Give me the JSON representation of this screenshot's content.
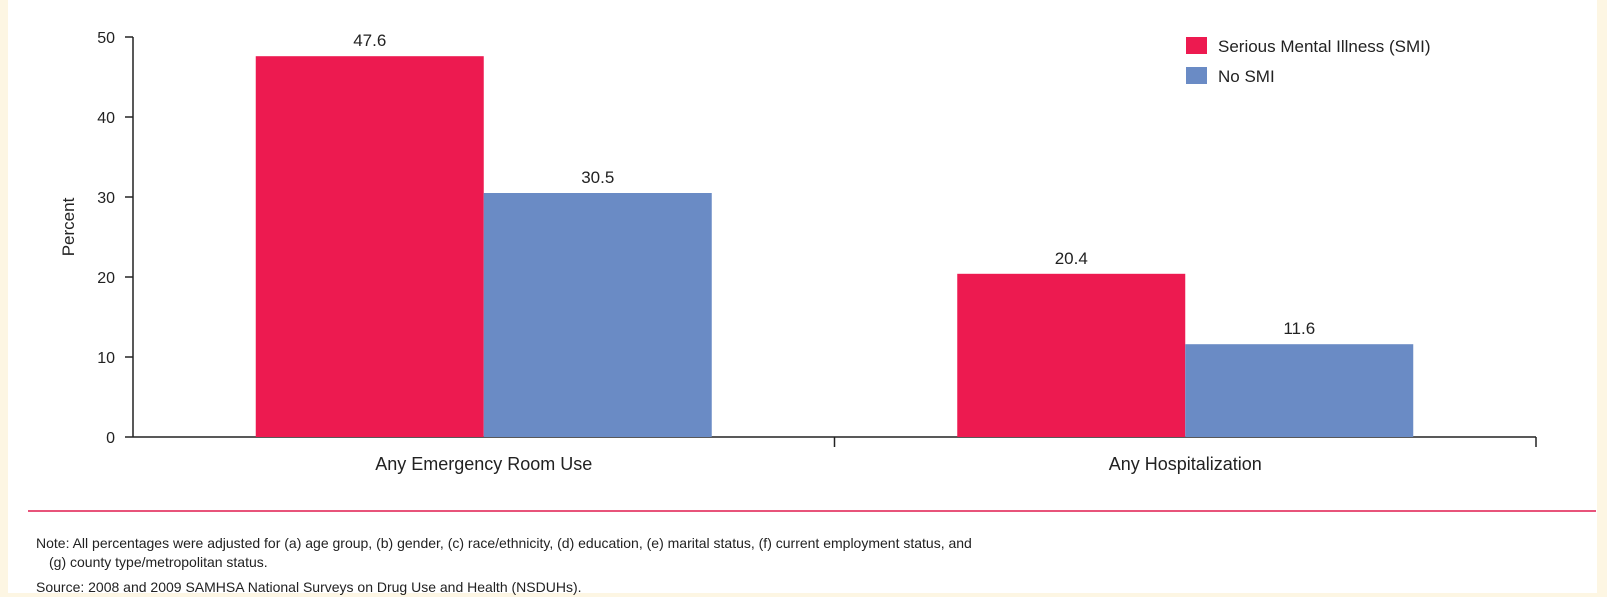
{
  "chart_data": {
    "type": "bar",
    "categories": [
      "Any Emergency Room Use",
      "Any Hospitalization"
    ],
    "series": [
      {
        "name": "Serious Mental Illness (SMI)",
        "values": [
          47.6,
          20.4
        ],
        "color": "#ed1a50"
      },
      {
        "name": "No SMI",
        "values": [
          30.5,
          11.6
        ],
        "color": "#6a8bc5"
      }
    ],
    "data_labels": [
      [
        "47.6",
        "20.4"
      ],
      [
        "30.5",
        "11.6"
      ]
    ],
    "ylabel": "Percent",
    "ylim": [
      0,
      50
    ],
    "yticks": [
      0,
      10,
      20,
      30,
      40,
      50
    ],
    "legend_position": "top-right",
    "grid": false
  },
  "notes": {
    "line1": "Note: All percentages were adjusted for (a) age group, (b) gender, (c) race/ethnicity, (d) education, (e) marital status, (f) current employment status, and",
    "line2": "(g) county type/metropolitan status.",
    "source": "Source: 2008 and 2009 SAMHSA National Surveys on Drug Use and Health (NSDUHs)."
  },
  "colors": {
    "background": "#fdf6e3",
    "divider": "#e8537a"
  }
}
